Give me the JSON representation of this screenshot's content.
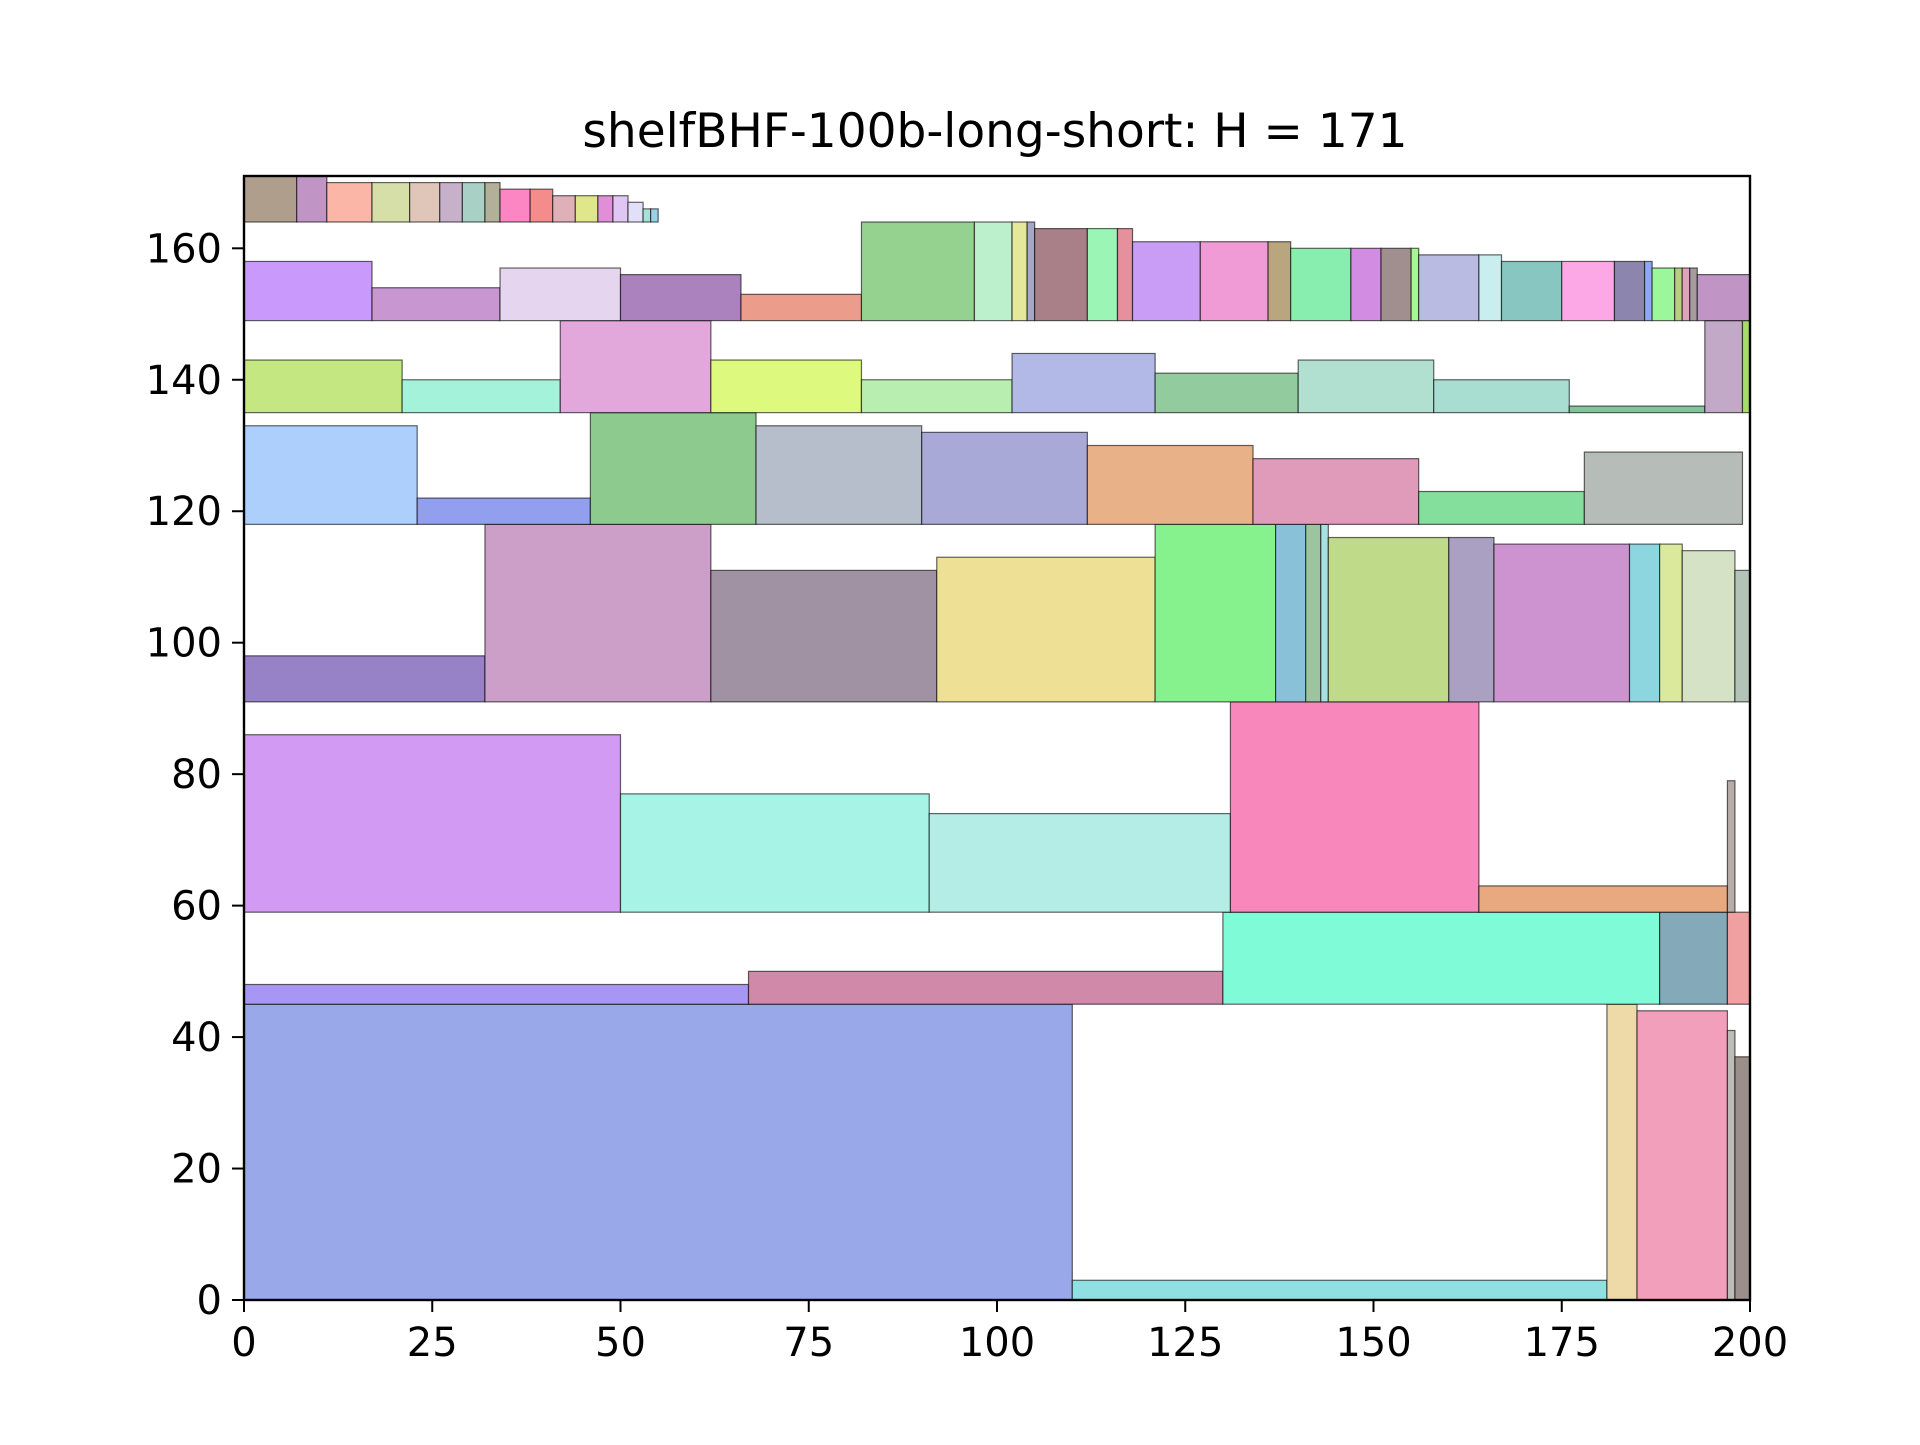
{
  "chart_data": {
    "type": "rectangle-packing",
    "title": "shelfBHF-100b-long-short: H = 171",
    "xlabel": "",
    "ylabel": "",
    "xlim": [
      0,
      200
    ],
    "ylim": [
      0,
      171
    ],
    "grid": false,
    "x_ticks": [
      0,
      25,
      50,
      75,
      100,
      125,
      150,
      175,
      200
    ],
    "y_ticks": [
      0,
      20,
      40,
      60,
      80,
      100,
      120,
      140,
      160
    ],
    "x_tick_labels": [
      "0",
      "25",
      "50",
      "75",
      "100",
      "125",
      "150",
      "175",
      "200"
    ],
    "y_tick_labels": [
      "0",
      "20",
      "40",
      "60",
      "80",
      "100",
      "120",
      "140",
      "160"
    ],
    "rectangles": [
      {
        "x": 0,
        "y": 0,
        "w": 110,
        "h": 45,
        "color": "#98a8e8"
      },
      {
        "x": 110,
        "y": 0,
        "w": 71,
        "h": 3,
        "color": "#8ee0e3"
      },
      {
        "x": 181,
        "y": 0,
        "w": 4,
        "h": 45,
        "color": "#eed9a8"
      },
      {
        "x": 185,
        "y": 0,
        "w": 12,
        "h": 44,
        "color": "#f29fbb"
      },
      {
        "x": 197,
        "y": 0,
        "w": 1,
        "h": 41,
        "color": "#bdbdb8"
      },
      {
        "x": 198,
        "y": 0,
        "w": 2,
        "h": 37,
        "color": "#9a8f8a"
      },
      {
        "x": 0,
        "y": 45,
        "w": 67,
        "h": 3,
        "color": "#a896f5"
      },
      {
        "x": 67,
        "y": 45,
        "w": 63,
        "h": 5,
        "color": "#d189a9"
      },
      {
        "x": 130,
        "y": 45,
        "w": 58,
        "h": 14,
        "color": "#7ffbd8"
      },
      {
        "x": 188,
        "y": 45,
        "w": 9,
        "h": 14,
        "color": "#84a9b9"
      },
      {
        "x": 197,
        "y": 45,
        "w": 3,
        "h": 14,
        "color": "#f0a0a0"
      },
      {
        "x": 0,
        "y": 59,
        "w": 50,
        "h": 27,
        "color": "#d39af3"
      },
      {
        "x": 50,
        "y": 59,
        "w": 41,
        "h": 18,
        "color": "#a7f3e6"
      },
      {
        "x": 91,
        "y": 59,
        "w": 40,
        "h": 15,
        "color": "#b3ede6"
      },
      {
        "x": 131,
        "y": 59,
        "w": 33,
        "h": 32,
        "color": "#f888bb"
      },
      {
        "x": 164,
        "y": 59,
        "w": 33,
        "h": 4,
        "color": "#e9a97e"
      },
      {
        "x": 197,
        "y": 59,
        "w": 1,
        "h": 20,
        "color": "#b8aca8"
      },
      {
        "x": 0,
        "y": 91,
        "w": 32,
        "h": 7,
        "color": "#9782c8"
      },
      {
        "x": 32,
        "y": 91,
        "w": 30,
        "h": 27,
        "color": "#cc9fc9"
      },
      {
        "x": 62,
        "y": 91,
        "w": 30,
        "h": 20,
        "color": "#a092a2"
      },
      {
        "x": 92,
        "y": 91,
        "w": 29,
        "h": 22,
        "color": "#eee094"
      },
      {
        "x": 121,
        "y": 91,
        "w": 16,
        "h": 27,
        "color": "#86f28e"
      },
      {
        "x": 137,
        "y": 91,
        "w": 4,
        "h": 27,
        "color": "#89c1d8"
      },
      {
        "x": 141,
        "y": 91,
        "w": 2,
        "h": 27,
        "color": "#9cc49f"
      },
      {
        "x": 143,
        "y": 91,
        "w": 1,
        "h": 27,
        "color": "#a8e0e3"
      },
      {
        "x": 144,
        "y": 91,
        "w": 16,
        "h": 25,
        "color": "#bfda88"
      },
      {
        "x": 160,
        "y": 91,
        "w": 6,
        "h": 25,
        "color": "#a9a0c2"
      },
      {
        "x": 166,
        "y": 91,
        "w": 18,
        "h": 24,
        "color": "#cc93d0"
      },
      {
        "x": 184,
        "y": 91,
        "w": 4,
        "h": 24,
        "color": "#8dd6e0"
      },
      {
        "x": 188,
        "y": 91,
        "w": 3,
        "h": 24,
        "color": "#dbe99c"
      },
      {
        "x": 191,
        "y": 91,
        "w": 7,
        "h": 23,
        "color": "#d5e2c6"
      },
      {
        "x": 198,
        "y": 91,
        "w": 2,
        "h": 20,
        "color": "#b3c3b8"
      },
      {
        "x": 0,
        "y": 118,
        "w": 23,
        "h": 15,
        "color": "#acd0fb"
      },
      {
        "x": 23,
        "y": 118,
        "w": 23,
        "h": 4,
        "color": "#919fee"
      },
      {
        "x": 46,
        "y": 118,
        "w": 22,
        "h": 17,
        "color": "#8dca8e"
      },
      {
        "x": 68,
        "y": 118,
        "w": 22,
        "h": 15,
        "color": "#b7becb"
      },
      {
        "x": 90,
        "y": 118,
        "w": 22,
        "h": 14,
        "color": "#a9a9d8"
      },
      {
        "x": 112,
        "y": 118,
        "w": 22,
        "h": 12,
        "color": "#e9b187"
      },
      {
        "x": 134,
        "y": 118,
        "w": 22,
        "h": 10,
        "color": "#df9bb9"
      },
      {
        "x": 156,
        "y": 118,
        "w": 22,
        "h": 5,
        "color": "#85df9c"
      },
      {
        "x": 178,
        "y": 118,
        "w": 21,
        "h": 11,
        "color": "#b6bcb8"
      },
      {
        "x": 0,
        "y": 135,
        "w": 21,
        "h": 8,
        "color": "#c4e782"
      },
      {
        "x": 21,
        "y": 135,
        "w": 21,
        "h": 5,
        "color": "#a5f2da"
      },
      {
        "x": 42,
        "y": 135,
        "w": 20,
        "h": 14,
        "color": "#e2a8dc"
      },
      {
        "x": 62,
        "y": 135,
        "w": 20,
        "h": 8,
        "color": "#ddf97e"
      },
      {
        "x": 82,
        "y": 135,
        "w": 20,
        "h": 5,
        "color": "#b8eeb0"
      },
      {
        "x": 102,
        "y": 135,
        "w": 19,
        "h": 9,
        "color": "#b2b9e6"
      },
      {
        "x": 121,
        "y": 135,
        "w": 19,
        "h": 6,
        "color": "#92cb9e"
      },
      {
        "x": 140,
        "y": 135,
        "w": 18,
        "h": 8,
        "color": "#b2e0d0"
      },
      {
        "x": 158,
        "y": 135,
        "w": 18,
        "h": 5,
        "color": "#a8ddd2"
      },
      {
        "x": 176,
        "y": 135,
        "w": 18,
        "h": 1,
        "color": "#82c49a"
      },
      {
        "x": 194,
        "y": 135,
        "w": 5,
        "h": 14,
        "color": "#c2a9c8"
      },
      {
        "x": 199,
        "y": 135,
        "w": 1,
        "h": 14,
        "color": "#a6dc6a"
      },
      {
        "x": 0,
        "y": 149,
        "w": 17,
        "h": 9,
        "color": "#c99afb"
      },
      {
        "x": 17,
        "y": 149,
        "w": 17,
        "h": 5,
        "color": "#c897d1"
      },
      {
        "x": 34,
        "y": 149,
        "w": 16,
        "h": 8,
        "color": "#e5d5ee"
      },
      {
        "x": 50,
        "y": 149,
        "w": 16,
        "h": 7,
        "color": "#ab82bd"
      },
      {
        "x": 66,
        "y": 149,
        "w": 16,
        "h": 4,
        "color": "#ec9c8a"
      },
      {
        "x": 82,
        "y": 149,
        "w": 15,
        "h": 15,
        "color": "#95d290"
      },
      {
        "x": 97,
        "y": 149,
        "w": 5,
        "h": 15,
        "color": "#bcefcc"
      },
      {
        "x": 102,
        "y": 149,
        "w": 2,
        "h": 15,
        "color": "#e4e89a"
      },
      {
        "x": 104,
        "y": 149,
        "w": 1,
        "h": 15,
        "color": "#a4a8c4"
      },
      {
        "x": 105,
        "y": 149,
        "w": 7,
        "h": 14,
        "color": "#a98087"
      },
      {
        "x": 112,
        "y": 149,
        "w": 4,
        "h": 14,
        "color": "#9bf6b6"
      },
      {
        "x": 116,
        "y": 149,
        "w": 2,
        "h": 14,
        "color": "#e6909e"
      },
      {
        "x": 118,
        "y": 149,
        "w": 9,
        "h": 12,
        "color": "#c99cf5"
      },
      {
        "x": 127,
        "y": 149,
        "w": 9,
        "h": 12,
        "color": "#f19bd6"
      },
      {
        "x": 136,
        "y": 149,
        "w": 3,
        "h": 12,
        "color": "#b9a57e"
      },
      {
        "x": 139,
        "y": 149,
        "w": 8,
        "h": 11,
        "color": "#87eeaf"
      },
      {
        "x": 147,
        "y": 149,
        "w": 4,
        "h": 11,
        "color": "#d28de3"
      },
      {
        "x": 151,
        "y": 149,
        "w": 4,
        "h": 11,
        "color": "#a18f8f"
      },
      {
        "x": 155,
        "y": 149,
        "w": 1,
        "h": 11,
        "color": "#a4f88e"
      },
      {
        "x": 156,
        "y": 149,
        "w": 8,
        "h": 10,
        "color": "#b9bbe3"
      },
      {
        "x": 164,
        "y": 149,
        "w": 3,
        "h": 10,
        "color": "#c9eef0"
      },
      {
        "x": 167,
        "y": 149,
        "w": 8,
        "h": 9,
        "color": "#87c6c1"
      },
      {
        "x": 175,
        "y": 149,
        "w": 7,
        "h": 9,
        "color": "#fda8e6"
      },
      {
        "x": 182,
        "y": 149,
        "w": 4,
        "h": 9,
        "color": "#8c85ad"
      },
      {
        "x": 186,
        "y": 149,
        "w": 1,
        "h": 9,
        "color": "#8fa8f3"
      },
      {
        "x": 187,
        "y": 149,
        "w": 3,
        "h": 8,
        "color": "#9cf79a"
      },
      {
        "x": 190,
        "y": 149,
        "w": 1,
        "h": 8,
        "color": "#b7cf7e"
      },
      {
        "x": 191,
        "y": 149,
        "w": 1,
        "h": 8,
        "color": "#dfa3c0"
      },
      {
        "x": 192,
        "y": 149,
        "w": 1,
        "h": 8,
        "color": "#a59ca0"
      },
      {
        "x": 193,
        "y": 149,
        "w": 7,
        "h": 7,
        "color": "#c094c5"
      },
      {
        "x": 0,
        "y": 164,
        "w": 7,
        "h": 7,
        "color": "#b09e8c"
      },
      {
        "x": 7,
        "y": 164,
        "w": 4,
        "h": 7,
        "color": "#c095c5"
      },
      {
        "x": 11,
        "y": 164,
        "w": 6,
        "h": 6,
        "color": "#fbb6a8"
      },
      {
        "x": 17,
        "y": 164,
        "w": 5,
        "h": 6,
        "color": "#d6dfa8"
      },
      {
        "x": 22,
        "y": 164,
        "w": 4,
        "h": 6,
        "color": "#dfc6b8"
      },
      {
        "x": 26,
        "y": 164,
        "w": 3,
        "h": 6,
        "color": "#c7b0c9"
      },
      {
        "x": 29,
        "y": 164,
        "w": 3,
        "h": 6,
        "color": "#a8d0c4"
      },
      {
        "x": 32,
        "y": 164,
        "w": 2,
        "h": 6,
        "color": "#b2b098"
      },
      {
        "x": 34,
        "y": 164,
        "w": 4,
        "h": 5,
        "color": "#fb86c3"
      },
      {
        "x": 38,
        "y": 164,
        "w": 3,
        "h": 5,
        "color": "#f48c8c"
      },
      {
        "x": 41,
        "y": 164,
        "w": 3,
        "h": 4,
        "color": "#e0b0b8"
      },
      {
        "x": 44,
        "y": 164,
        "w": 3,
        "h": 4,
        "color": "#e0e68a"
      },
      {
        "x": 47,
        "y": 164,
        "w": 2,
        "h": 4,
        "color": "#e08fd6"
      },
      {
        "x": 49,
        "y": 164,
        "w": 2,
        "h": 4,
        "color": "#e0c6f2"
      },
      {
        "x": 51,
        "y": 164,
        "w": 2,
        "h": 3,
        "color": "#e2e0f8"
      },
      {
        "x": 53,
        "y": 164,
        "w": 1,
        "h": 2,
        "color": "#a6e2d8"
      },
      {
        "x": 54,
        "y": 164,
        "w": 1,
        "h": 2,
        "color": "#9cd0e4"
      }
    ]
  }
}
